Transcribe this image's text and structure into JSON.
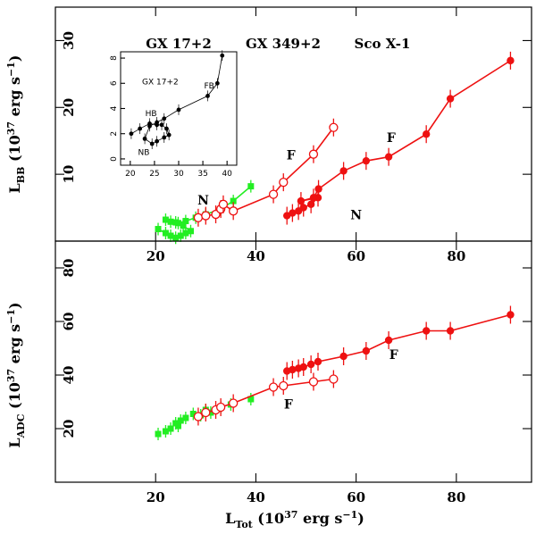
{
  "chart_data": [
    {
      "type": "scatter",
      "panel": "top",
      "title_labels": [
        "GX 17+2",
        "GX 349+2",
        "Sco X-1"
      ],
      "ylabel": "L_BB (10^37 erg s^-1)",
      "xlim": [
        0,
        95
      ],
      "ylim": [
        0,
        35
      ],
      "x_ticks": [
        20,
        40,
        60,
        80
      ],
      "y_ticks": [
        10,
        20,
        30
      ],
      "colors": {
        "gx349": "#22ee22",
        "gx17": "#ee1111",
        "sco": "#ee1111",
        "line": "#ee1111"
      },
      "series": [
        {
          "name": "GX 349+2",
          "marker": "filled-square",
          "connected": true,
          "x": [
            20.5,
            22,
            23,
            24,
            25,
            26,
            27,
            25.5,
            24,
            22,
            23,
            24.5,
            26,
            28,
            30,
            33,
            35.5,
            39
          ],
          "y": [
            1.8,
            1.2,
            0.8,
            0.5,
            0.8,
            1.2,
            1.5,
            2.3,
            2.8,
            3.2,
            2.9,
            2.7,
            3.0,
            3.5,
            4.0,
            4.8,
            6.0,
            8.2
          ]
        },
        {
          "name": "GX 17+2",
          "marker": "open-circle",
          "connected": true,
          "x": [
            28.5,
            30,
            32,
            33,
            33.5,
            35.5,
            43.5,
            45.5,
            51.5,
            55.5
          ],
          "y": [
            3.5,
            3.8,
            4.0,
            4.8,
            5.5,
            4.5,
            7.0,
            8.8,
            13.0,
            17.0
          ]
        },
        {
          "name": "Sco X-1",
          "marker": "filled-circle",
          "connected": true,
          "x": [
            46.2,
            47.3,
            48.5,
            49.5,
            51,
            52.4,
            49,
            51.5,
            52.5,
            57.5,
            62,
            66.5,
            74,
            78.8,
            90.8
          ],
          "y": [
            3.8,
            4.2,
            4.5,
            5.0,
            5.5,
            6.5,
            6.0,
            6.5,
            7.8,
            10.5,
            12.0,
            12.6,
            16.0,
            21.3,
            27.0
          ]
        }
      ],
      "annotations": [
        {
          "text": "N",
          "x": 29.5,
          "y": 5.5
        },
        {
          "text": "F",
          "x": 47,
          "y": 12.2
        },
        {
          "text": "F",
          "x": 67,
          "y": 14.8
        },
        {
          "text": "N",
          "x": 60,
          "y": 3.3
        }
      ],
      "inset": {
        "label": "GX 17+2",
        "xlim": [
          18,
          42
        ],
        "ylim": [
          -0.5,
          8.5
        ],
        "x_ticks": [
          20,
          25,
          30,
          35,
          40
        ],
        "y_ticks": [
          0,
          2,
          4,
          6,
          8
        ],
        "x": [
          20.2,
          22,
          24,
          25.5,
          26.5,
          27.5,
          28,
          27,
          25.5,
          24.5,
          23,
          24,
          25.5,
          27,
          30,
          36,
          38,
          39
        ],
        "y": [
          2.0,
          2.4,
          2.8,
          2.7,
          2.7,
          2.4,
          1.9,
          1.7,
          1.4,
          1.2,
          1.6,
          2.6,
          2.9,
          3.2,
          3.9,
          5.0,
          6.0,
          8.2
        ],
        "annotations": [
          {
            "text": "HB",
            "x": 24.3,
            "y": 3.4
          },
          {
            "text": "NB",
            "x": 22.8,
            "y": 0.3
          },
          {
            "text": "FB",
            "x": 36.3,
            "y": 5.6
          }
        ]
      }
    },
    {
      "type": "scatter",
      "panel": "bottom",
      "xlabel": "L_Tot (10^37 erg s^-1)",
      "ylabel": "L_ADC (10^37 erg s^-1)",
      "xlim": [
        0,
        95
      ],
      "ylim": [
        0,
        90
      ],
      "x_ticks": [
        20,
        40,
        60,
        80
      ],
      "y_ticks": [
        20,
        40,
        60,
        80
      ],
      "series": [
        {
          "name": "GX 349+2",
          "marker": "filled-square",
          "connected": false,
          "x": [
            20.5,
            22,
            23,
            24,
            24.5,
            25,
            26,
            27.5,
            29,
            30,
            31,
            33,
            35,
            39
          ],
          "y": [
            18,
            19,
            20,
            22,
            21,
            23,
            24,
            25.5,
            25,
            27,
            26,
            28,
            29,
            31
          ]
        },
        {
          "name": "GX 17+2",
          "marker": "open-circle",
          "connected": true,
          "x": [
            28.5,
            30,
            32,
            33,
            35.5,
            43.5,
            45.5,
            51.5,
            55.5
          ],
          "y": [
            24.5,
            26,
            27,
            28,
            29.5,
            35.5,
            36,
            37.5,
            38.5
          ]
        },
        {
          "name": "Sco X-1",
          "marker": "filled-circle",
          "connected": true,
          "x": [
            46.2,
            47.3,
            48.5,
            49.5,
            51,
            52.4,
            57.5,
            62,
            66.5,
            74,
            78.8,
            90.8
          ],
          "y": [
            41.5,
            42,
            42.5,
            43,
            44,
            45,
            47,
            49,
            53,
            56.5,
            56.5,
            62.5
          ]
        }
      ],
      "annotations": [
        {
          "text": "F",
          "x": 46.5,
          "y": 27.5
        },
        {
          "text": "F",
          "x": 67.5,
          "y": 46
        }
      ]
    }
  ]
}
